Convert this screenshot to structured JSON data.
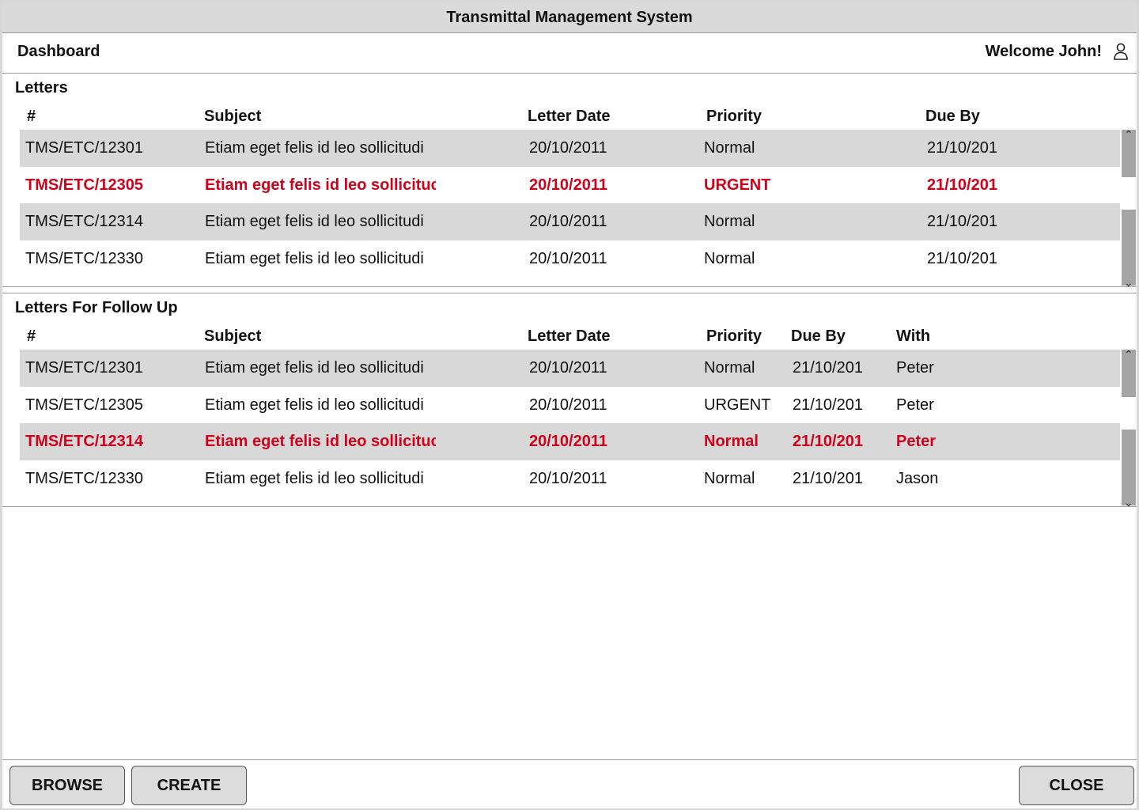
{
  "window": {
    "title": "Transmittal Management System"
  },
  "header": {
    "breadcrumb": "Dashboard",
    "welcome": "Welcome John!",
    "user_icon": "user-icon"
  },
  "letters": {
    "title": "Letters",
    "columns": [
      "#",
      "Subject",
      "Letter Date",
      "Priority",
      "Due By"
    ],
    "rows": [
      {
        "id": "TMS/ETC/12301",
        "subject": "Etiam eget felis id leo sollicitudi",
        "date": "20/10/2011",
        "priority": "Normal",
        "due": "21/10/201"
      },
      {
        "id": "TMS/ETC/12305",
        "subject": "Etiam eget felis id leo sollicituc",
        "date": "20/10/2011",
        "priority": "URGENT",
        "due": "21/10/201"
      },
      {
        "id": "TMS/ETC/12314",
        "subject": "Etiam eget felis id leo sollicitudi",
        "date": "20/10/2011",
        "priority": "Normal",
        "due": "21/10/201"
      },
      {
        "id": "TMS/ETC/12330",
        "subject": "Etiam eget felis id leo sollicitudi",
        "date": "20/10/2011",
        "priority": "Normal",
        "due": "21/10/201"
      }
    ]
  },
  "followup": {
    "title": "Letters For Follow Up",
    "columns": [
      "#",
      "Subject",
      "Letter Date",
      "Priority",
      "Due By",
      "With"
    ],
    "rows": [
      {
        "id": "TMS/ETC/12301",
        "subject": "Etiam eget felis id leo sollicitudi",
        "date": "20/10/2011",
        "priority": "Normal",
        "due": "21/10/201",
        "with": "Peter"
      },
      {
        "id": "TMS/ETC/12305",
        "subject": "Etiam eget felis id leo sollicitudi",
        "date": "20/10/2011",
        "priority": "URGENT",
        "due": "21/10/201",
        "with": "Peter"
      },
      {
        "id": "TMS/ETC/12314",
        "subject": "Etiam eget felis id leo sollicituc",
        "date": "20/10/2011",
        "priority": "Normal",
        "due": "21/10/201",
        "with": "Peter"
      },
      {
        "id": "TMS/ETC/12330",
        "subject": "Etiam eget felis id leo sollicitudi",
        "date": "20/10/2011",
        "priority": "Normal",
        "due": "21/10/201",
        "with": "Jason"
      }
    ]
  },
  "footer": {
    "browse_label": "BROWSE",
    "create_label": "CREATE",
    "close_label": "CLOSE"
  },
  "colors": {
    "alert": "#d0021b",
    "row_shade": "#d8d8d8"
  }
}
